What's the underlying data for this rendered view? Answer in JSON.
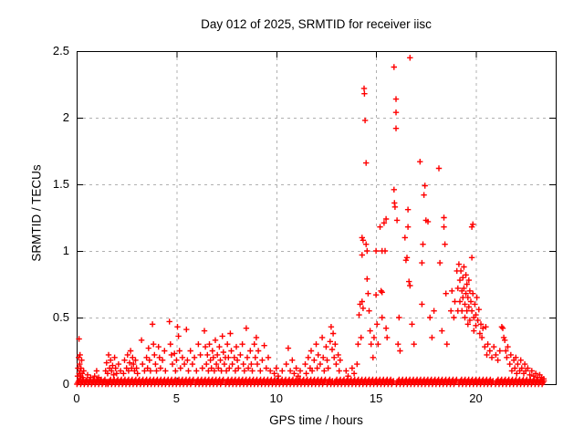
{
  "chart_data": {
    "type": "scatter",
    "title": "Day 012 of 2025, SRMTID for receiver iisc",
    "xlabel": "GPS time / hours",
    "ylabel": "SRMTID / TECUs",
    "xlim": [
      0,
      24
    ],
    "ylim": [
      0,
      2.5
    ],
    "xticks": [
      0,
      5,
      10,
      15,
      20
    ],
    "yticks": [
      0,
      0.5,
      1,
      1.5,
      2,
      2.5
    ],
    "grid": true,
    "legend": "none",
    "marker": "plus",
    "marker_color": "#ff0000",
    "grid_color": "#b0b0b0",
    "axis_color": "#000000",
    "background": "#ffffff",
    "baseline_band": {
      "comment": "dense near-zero SRMTID band along the time axis",
      "y_values": [
        0,
        0.012,
        0.025,
        0.035
      ],
      "x_step": 0.045,
      "segments": [
        [
          0.02,
          1.52
        ],
        [
          1.57,
          5.86
        ],
        [
          5.95,
          7.38
        ],
        [
          7.46,
          12.48
        ],
        [
          12.55,
          12.82
        ],
        [
          12.9,
          15.88
        ],
        [
          16.02,
          19.05
        ],
        [
          19.15,
          20.88
        ],
        [
          20.98,
          23.45
        ]
      ]
    },
    "points": [
      [
        0.05,
        0.06
      ],
      [
        0.07,
        0.12
      ],
      [
        0.1,
        0.2
      ],
      [
        0.12,
        0.34
      ],
      [
        0.13,
        0.08
      ],
      [
        0.15,
        0.15
      ],
      [
        0.17,
        0.22
      ],
      [
        0.18,
        0.1
      ],
      [
        0.2,
        0.06
      ],
      [
        0.22,
        0.12
      ],
      [
        0.25,
        0.18
      ],
      [
        0.28,
        0.08
      ],
      [
        0.3,
        0.05
      ],
      [
        0.35,
        0.1
      ],
      [
        0.55,
        0.07
      ],
      [
        0.7,
        0.05
      ],
      [
        0.9,
        0.06
      ],
      [
        1.0,
        0.1
      ],
      [
        1.1,
        0.05
      ],
      [
        1.45,
        0.1
      ],
      [
        1.5,
        0.16
      ],
      [
        1.55,
        0.08
      ],
      [
        1.6,
        0.22
      ],
      [
        1.65,
        0.12
      ],
      [
        1.7,
        0.18
      ],
      [
        1.75,
        0.1
      ],
      [
        1.8,
        0.14
      ],
      [
        1.85,
        0.07
      ],
      [
        1.9,
        0.2
      ],
      [
        1.95,
        0.12
      ],
      [
        2.0,
        0.08
      ],
      [
        2.1,
        0.15
      ],
      [
        2.2,
        0.1
      ],
      [
        2.35,
        0.08
      ],
      [
        2.4,
        0.18
      ],
      [
        2.5,
        0.12
      ],
      [
        2.55,
        0.22
      ],
      [
        2.6,
        0.1
      ],
      [
        2.65,
        0.16
      ],
      [
        2.7,
        0.25
      ],
      [
        2.75,
        0.12
      ],
      [
        2.8,
        0.2
      ],
      [
        2.85,
        0.15
      ],
      [
        2.9,
        0.1
      ],
      [
        2.95,
        0.18
      ],
      [
        3.0,
        0.12
      ],
      [
        3.05,
        0.08
      ],
      [
        3.25,
        0.33
      ],
      [
        3.3,
        0.15
      ],
      [
        3.4,
        0.1
      ],
      [
        3.5,
        0.2
      ],
      [
        3.55,
        0.12
      ],
      [
        3.6,
        0.27
      ],
      [
        3.65,
        0.18
      ],
      [
        3.7,
        0.1
      ],
      [
        3.8,
        0.45
      ],
      [
        3.85,
        0.3
      ],
      [
        3.9,
        0.22
      ],
      [
        3.95,
        0.15
      ],
      [
        4.0,
        0.1
      ],
      [
        4.1,
        0.28
      ],
      [
        4.15,
        0.2
      ],
      [
        4.2,
        0.12
      ],
      [
        4.3,
        0.18
      ],
      [
        4.4,
        0.25
      ],
      [
        4.45,
        0.1
      ],
      [
        4.65,
        0.47
      ],
      [
        4.7,
        0.3
      ],
      [
        4.75,
        0.22
      ],
      [
        4.8,
        0.15
      ],
      [
        4.9,
        0.23
      ],
      [
        4.95,
        0.1
      ],
      [
        5.0,
        0.18
      ],
      [
        5.05,
        0.43
      ],
      [
        5.1,
        0.36
      ],
      [
        5.15,
        0.25
      ],
      [
        5.2,
        0.12
      ],
      [
        5.3,
        0.2
      ],
      [
        5.4,
        0.15
      ],
      [
        5.5,
        0.41
      ],
      [
        5.55,
        0.18
      ],
      [
        5.6,
        0.1
      ],
      [
        5.7,
        0.25
      ],
      [
        5.8,
        0.15
      ],
      [
        5.9,
        0.2
      ],
      [
        6.0,
        0.1
      ],
      [
        6.1,
        0.3
      ],
      [
        6.2,
        0.22
      ],
      [
        6.3,
        0.12
      ],
      [
        6.4,
        0.4
      ],
      [
        6.45,
        0.28
      ],
      [
        6.5,
        0.15
      ],
      [
        6.55,
        0.22
      ],
      [
        6.6,
        0.1
      ],
      [
        6.65,
        0.3
      ],
      [
        6.7,
        0.18
      ],
      [
        6.75,
        0.12
      ],
      [
        6.8,
        0.25
      ],
      [
        6.85,
        0.2
      ],
      [
        6.9,
        0.1
      ],
      [
        6.95,
        0.33
      ],
      [
        7.0,
        0.15
      ],
      [
        7.05,
        0.22
      ],
      [
        7.1,
        0.12
      ],
      [
        7.15,
        0.28
      ],
      [
        7.2,
        0.18
      ],
      [
        7.25,
        0.1
      ],
      [
        7.3,
        0.36
      ],
      [
        7.35,
        0.24
      ],
      [
        7.4,
        0.15
      ],
      [
        7.45,
        0.2
      ],
      [
        7.5,
        0.1
      ],
      [
        7.55,
        0.3
      ],
      [
        7.6,
        0.2
      ],
      [
        7.65,
        0.12
      ],
      [
        7.7,
        0.38
      ],
      [
        7.75,
        0.25
      ],
      [
        7.8,
        0.15
      ],
      [
        7.9,
        0.2
      ],
      [
        7.95,
        0.1
      ],
      [
        8.0,
        0.28
      ],
      [
        8.05,
        0.18
      ],
      [
        8.1,
        0.12
      ],
      [
        8.2,
        0.22
      ],
      [
        8.3,
        0.3
      ],
      [
        8.35,
        0.15
      ],
      [
        8.4,
        0.1
      ],
      [
        8.5,
        0.42
      ],
      [
        8.55,
        0.2
      ],
      [
        8.6,
        0.12
      ],
      [
        8.7,
        0.25
      ],
      [
        8.75,
        0.15
      ],
      [
        8.8,
        0.1
      ],
      [
        8.9,
        0.3
      ],
      [
        8.95,
        0.2
      ],
      [
        9.0,
        0.35
      ],
      [
        9.05,
        0.15
      ],
      [
        9.1,
        0.25
      ],
      [
        9.2,
        0.1
      ],
      [
        9.3,
        0.18
      ],
      [
        9.4,
        0.29
      ],
      [
        9.5,
        0.12
      ],
      [
        9.6,
        0.2
      ],
      [
        9.7,
        0.1
      ],
      [
        9.9,
        0.08
      ],
      [
        10.0,
        0.12
      ],
      [
        10.1,
        0.06
      ],
      [
        10.3,
        0.1
      ],
      [
        10.5,
        0.15
      ],
      [
        10.6,
        0.27
      ],
      [
        10.7,
        0.1
      ],
      [
        10.8,
        0.18
      ],
      [
        10.9,
        0.08
      ],
      [
        11.0,
        0.12
      ],
      [
        11.1,
        0.06
      ],
      [
        11.2,
        0.1
      ],
      [
        11.45,
        0.15
      ],
      [
        11.5,
        0.08
      ],
      [
        11.6,
        0.2
      ],
      [
        11.7,
        0.12
      ],
      [
        11.75,
        0.25
      ],
      [
        11.8,
        0.1
      ],
      [
        11.9,
        0.18
      ],
      [
        12.0,
        0.3
      ],
      [
        12.05,
        0.12
      ],
      [
        12.1,
        0.22
      ],
      [
        12.2,
        0.15
      ],
      [
        12.3,
        0.35
      ],
      [
        12.35,
        0.2
      ],
      [
        12.4,
        0.1
      ],
      [
        12.5,
        0.28
      ],
      [
        12.55,
        0.18
      ],
      [
        12.6,
        0.12
      ],
      [
        12.7,
        0.32
      ],
      [
        12.75,
        0.43
      ],
      [
        12.8,
        0.26
      ],
      [
        12.85,
        0.38
      ],
      [
        12.9,
        0.2
      ],
      [
        12.95,
        0.3
      ],
      [
        13.0,
        0.15
      ],
      [
        13.1,
        0.22
      ],
      [
        13.15,
        0.1
      ],
      [
        13.2,
        0.18
      ],
      [
        13.5,
        0.1
      ],
      [
        13.6,
        0.06
      ],
      [
        13.8,
        0.12
      ],
      [
        13.9,
        0.08
      ],
      [
        14.05,
        0.15
      ],
      [
        14.1,
        0.3
      ],
      [
        14.15,
        0.52
      ],
      [
        14.2,
        0.6
      ],
      [
        14.25,
        0.35
      ],
      [
        14.3,
        0.97
      ],
      [
        14.3,
        0.62
      ],
      [
        14.3,
        1.1
      ],
      [
        14.35,
        1.08
      ],
      [
        14.35,
        0.57
      ],
      [
        14.4,
        2.22
      ],
      [
        14.42,
        2.18
      ],
      [
        14.45,
        1.98
      ],
      [
        14.5,
        1.66
      ],
      [
        14.5,
        1.05
      ],
      [
        14.55,
        1.0
      ],
      [
        14.55,
        0.79
      ],
      [
        14.6,
        0.68
      ],
      [
        14.65,
        0.55
      ],
      [
        14.7,
        0.4
      ],
      [
        14.75,
        0.3
      ],
      [
        14.85,
        0.2
      ],
      [
        14.9,
        0.35
      ],
      [
        15.0,
        1.0
      ],
      [
        15.0,
        0.67
      ],
      [
        15.05,
        0.45
      ],
      [
        15.1,
        0.3
      ],
      [
        15.2,
        1.18
      ],
      [
        15.25,
        0.7
      ],
      [
        15.3,
        0.5
      ],
      [
        15.3,
        1.0
      ],
      [
        15.3,
        0.69
      ],
      [
        15.4,
        1.21
      ],
      [
        15.45,
        1.0
      ],
      [
        15.5,
        1.24
      ],
      [
        15.5,
        0.42
      ],
      [
        15.55,
        0.35
      ],
      [
        15.9,
        2.38
      ],
      [
        15.9,
        1.46
      ],
      [
        15.92,
        1.36
      ],
      [
        15.95,
        1.33
      ],
      [
        16.0,
        2.14
      ],
      [
        16.0,
        2.04
      ],
      [
        16.0,
        1.92
      ],
      [
        16.05,
        1.23
      ],
      [
        16.1,
        0.3
      ],
      [
        16.15,
        0.5
      ],
      [
        16.2,
        0.25
      ],
      [
        16.45,
        1.1
      ],
      [
        16.5,
        0.93
      ],
      [
        16.55,
        0.95
      ],
      [
        16.6,
        1.31
      ],
      [
        16.6,
        1.18
      ],
      [
        16.65,
        0.77
      ],
      [
        16.7,
        2.45
      ],
      [
        16.7,
        0.74
      ],
      [
        16.8,
        0.45
      ],
      [
        16.9,
        0.3
      ],
      [
        17.2,
        1.67
      ],
      [
        17.3,
        0.91
      ],
      [
        17.3,
        0.6
      ],
      [
        17.35,
        1.05
      ],
      [
        17.4,
        1.42
      ],
      [
        17.45,
        1.49
      ],
      [
        17.5,
        1.23
      ],
      [
        17.6,
        1.22
      ],
      [
        17.7,
        0.5
      ],
      [
        17.8,
        0.35
      ],
      [
        17.9,
        0.55
      ],
      [
        18.15,
        1.62
      ],
      [
        18.2,
        0.91
      ],
      [
        18.3,
        0.4
      ],
      [
        18.4,
        1.25
      ],
      [
        18.4,
        1.18
      ],
      [
        18.45,
        1.05
      ],
      [
        18.5,
        0.68
      ],
      [
        18.55,
        0.3
      ],
      [
        18.75,
        0.55
      ],
      [
        18.8,
        0.7
      ],
      [
        18.9,
        0.5
      ],
      [
        18.95,
        0.62
      ],
      [
        19.05,
        0.85
      ],
      [
        19.1,
        0.72
      ],
      [
        19.1,
        0.55
      ],
      [
        19.15,
        0.9
      ],
      [
        19.2,
        0.78
      ],
      [
        19.2,
        0.62
      ],
      [
        19.25,
        0.85
      ],
      [
        19.3,
        0.7
      ],
      [
        19.3,
        0.55
      ],
      [
        19.35,
        0.8
      ],
      [
        19.35,
        0.65
      ],
      [
        19.4,
        0.88
      ],
      [
        19.4,
        0.72
      ],
      [
        19.45,
        0.6
      ],
      [
        19.45,
        0.5
      ],
      [
        19.5,
        0.82
      ],
      [
        19.5,
        0.68
      ],
      [
        19.55,
        0.75
      ],
      [
        19.55,
        0.55
      ],
      [
        19.6,
        0.65
      ],
      [
        19.6,
        0.45
      ],
      [
        19.65,
        0.78
      ],
      [
        19.65,
        0.58
      ],
      [
        19.7,
        0.7
      ],
      [
        19.7,
        0.48
      ],
      [
        19.75,
        0.62
      ],
      [
        19.8,
        1.18
      ],
      [
        19.8,
        0.95
      ],
      [
        19.8,
        0.55
      ],
      [
        19.85,
        1.2
      ],
      [
        19.85,
        0.68
      ],
      [
        19.9,
        0.5
      ],
      [
        19.9,
        0.4
      ],
      [
        19.95,
        0.6
      ],
      [
        20.0,
        0.52
      ],
      [
        20.0,
        0.44
      ],
      [
        20.05,
        0.65
      ],
      [
        20.1,
        0.48
      ],
      [
        20.15,
        0.56
      ],
      [
        20.2,
        0.38
      ],
      [
        20.25,
        0.45
      ],
      [
        20.3,
        0.35
      ],
      [
        20.35,
        0.42
      ],
      [
        20.45,
        0.28
      ],
      [
        20.5,
        0.43
      ],
      [
        20.55,
        0.22
      ],
      [
        20.6,
        0.3
      ],
      [
        20.7,
        0.25
      ],
      [
        20.8,
        0.2
      ],
      [
        20.9,
        0.28
      ],
      [
        21.0,
        0.22
      ],
      [
        21.1,
        0.18
      ],
      [
        21.2,
        0.25
      ],
      [
        21.3,
        0.43
      ],
      [
        21.35,
        0.42
      ],
      [
        21.4,
        0.35
      ],
      [
        21.45,
        0.33
      ],
      [
        21.5,
        0.25
      ],
      [
        21.55,
        0.2
      ],
      [
        21.6,
        0.28
      ],
      [
        21.7,
        0.15
      ],
      [
        21.75,
        0.22
      ],
      [
        21.8,
        0.1
      ],
      [
        21.9,
        0.18
      ],
      [
        21.95,
        0.12
      ],
      [
        22.0,
        0.2
      ],
      [
        22.05,
        0.08
      ],
      [
        22.1,
        0.15
      ],
      [
        22.2,
        0.1
      ],
      [
        22.25,
        0.18
      ],
      [
        22.3,
        0.12
      ],
      [
        22.4,
        0.08
      ],
      [
        22.45,
        0.15
      ],
      [
        22.5,
        0.1
      ],
      [
        22.6,
        0.12
      ],
      [
        22.7,
        0.07
      ],
      [
        22.8,
        0.1
      ],
      [
        22.9,
        0.06
      ],
      [
        23.0,
        0.08
      ],
      [
        23.1,
        0.05
      ],
      [
        23.2,
        0.07
      ],
      [
        23.3,
        0.05
      ],
      [
        23.4,
        0.04
      ]
    ]
  }
}
